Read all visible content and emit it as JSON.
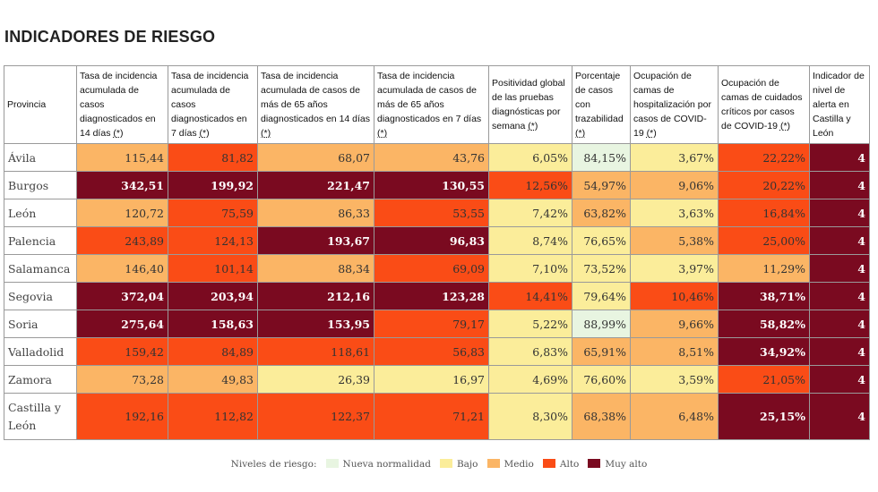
{
  "title": "INDICADORES DE RIESGO",
  "chart_data": {
    "type": "table",
    "columns": [
      {
        "label": "Provincia",
        "note": ""
      },
      {
        "label": "Tasa de incidencia acumulada de casos diagnosticados en 14 días",
        "note": "(*)"
      },
      {
        "label": "Tasa de incidencia acumulada de casos diagnosticados en 7 días",
        "note": "(*)"
      },
      {
        "label": "Tasa de incidencia acumulada de casos de más de 65 años diagnosticados en 14 días",
        "note": "(*)"
      },
      {
        "label": "Tasa de incidencia acumulada de casos de más de 65 años diagnosticados en 7 días",
        "note": "(*)"
      },
      {
        "label": "Positividad global de las pruebas diagnósticas por semana",
        "note": "(*)"
      },
      {
        "label": "Porcentaje de casos con trazabilidad",
        "note": "(*)"
      },
      {
        "label": "Ocupación de camas de hospitalización por casos de COVID-19",
        "note": "(*)"
      },
      {
        "label": "Ocupación de camas de cuidados críticos por casos de COVID-19",
        "note": "(*)"
      },
      {
        "label": "Indicador de nivel de alerta en Castilla y León",
        "note": ""
      }
    ],
    "rows": [
      {
        "province": "Ávila",
        "values": [
          "115,44",
          "81,82",
          "68,07",
          "43,76",
          "6,05%",
          "84,15%",
          "3,67%",
          "22,22%",
          "4"
        ],
        "levels": [
          "mid",
          "high",
          "mid",
          "mid",
          "low",
          "verylow",
          "low",
          "high",
          "veryhigh"
        ]
      },
      {
        "province": "Burgos",
        "values": [
          "342,51",
          "199,92",
          "221,47",
          "130,55",
          "12,56%",
          "54,97%",
          "9,06%",
          "20,22%",
          "4"
        ],
        "levels": [
          "veryhigh",
          "veryhigh",
          "veryhigh",
          "veryhigh",
          "high",
          "mid",
          "mid",
          "high",
          "veryhigh"
        ]
      },
      {
        "province": "León",
        "values": [
          "120,72",
          "75,59",
          "86,33",
          "53,55",
          "7,42%",
          "63,82%",
          "3,63%",
          "16,84%",
          "4"
        ],
        "levels": [
          "mid",
          "high",
          "mid",
          "high",
          "low",
          "mid",
          "low",
          "high",
          "veryhigh"
        ]
      },
      {
        "province": "Palencia",
        "values": [
          "243,89",
          "124,13",
          "193,67",
          "96,83",
          "8,74%",
          "76,65%",
          "5,38%",
          "25,00%",
          "4"
        ],
        "levels": [
          "high",
          "high",
          "veryhigh",
          "veryhigh",
          "low",
          "low",
          "mid",
          "high",
          "veryhigh"
        ]
      },
      {
        "province": "Salamanca",
        "values": [
          "146,40",
          "101,14",
          "88,34",
          "69,09",
          "7,10%",
          "73,52%",
          "3,97%",
          "11,29%",
          "4"
        ],
        "levels": [
          "mid",
          "high",
          "mid",
          "high",
          "low",
          "low",
          "low",
          "mid",
          "veryhigh"
        ]
      },
      {
        "province": "Segovia",
        "values": [
          "372,04",
          "203,94",
          "212,16",
          "123,28",
          "14,41%",
          "79,64%",
          "10,46%",
          "38,71%",
          "4"
        ],
        "levels": [
          "veryhigh",
          "veryhigh",
          "veryhigh",
          "veryhigh",
          "high",
          "low",
          "high",
          "veryhigh",
          "veryhigh"
        ]
      },
      {
        "province": "Soria",
        "values": [
          "275,64",
          "158,63",
          "153,95",
          "79,17",
          "5,22%",
          "88,99%",
          "9,66%",
          "58,82%",
          "4"
        ],
        "levels": [
          "veryhigh",
          "veryhigh",
          "veryhigh",
          "high",
          "low",
          "verylow",
          "mid",
          "veryhigh",
          "veryhigh"
        ]
      },
      {
        "province": "Valladolid",
        "values": [
          "159,42",
          "84,89",
          "118,61",
          "56,83",
          "6,83%",
          "65,91%",
          "8,51%",
          "34,92%",
          "4"
        ],
        "levels": [
          "high",
          "high",
          "high",
          "high",
          "low",
          "mid",
          "mid",
          "veryhigh",
          "veryhigh"
        ]
      },
      {
        "province": "Zamora",
        "values": [
          "73,28",
          "49,83",
          "26,39",
          "16,97",
          "4,69%",
          "76,60%",
          "3,59%",
          "21,05%",
          "4"
        ],
        "levels": [
          "mid",
          "mid",
          "low",
          "low",
          "low",
          "low",
          "low",
          "high",
          "veryhigh"
        ]
      },
      {
        "province": "Castilla y León",
        "values": [
          "192,16",
          "112,82",
          "122,37",
          "71,21",
          "8,30%",
          "68,38%",
          "6,48%",
          "25,15%",
          "4"
        ],
        "levels": [
          "high",
          "high",
          "high",
          "high",
          "low",
          "mid",
          "mid",
          "veryhigh",
          "veryhigh"
        ]
      }
    ],
    "legend": {
      "title": "Niveles de riesgo:",
      "items": [
        {
          "key": "verylow",
          "label": "Nueva normalidad",
          "color": "#e8f5e1"
        },
        {
          "key": "low",
          "label": "Bajo",
          "color": "#fbed9a"
        },
        {
          "key": "mid",
          "label": "Medio",
          "color": "#fbb565"
        },
        {
          "key": "high",
          "label": "Alto",
          "color": "#fa4c16"
        },
        {
          "key": "veryhigh",
          "label": "Muy alto",
          "color": "#7a0a20"
        }
      ]
    }
  }
}
